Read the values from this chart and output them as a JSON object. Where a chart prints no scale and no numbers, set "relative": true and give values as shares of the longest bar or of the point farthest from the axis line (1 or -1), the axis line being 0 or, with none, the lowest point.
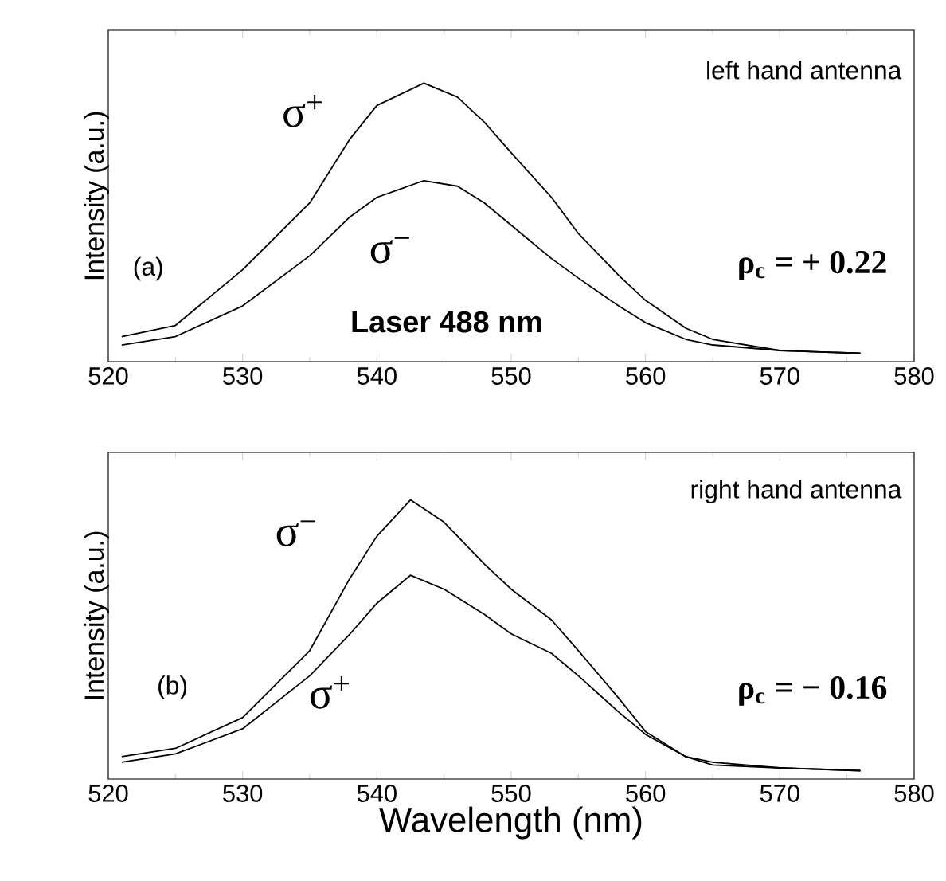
{
  "chart_data": [
    {
      "type": "line",
      "relative": true,
      "ylabel": "Intensity (a.u.)",
      "xlim": [
        520,
        580
      ],
      "xticks": [
        520,
        530,
        540,
        550,
        560,
        570,
        580
      ],
      "x": [
        521,
        525,
        530,
        535,
        538,
        540,
        543.5,
        546,
        548,
        550,
        553,
        555,
        558,
        560,
        563,
        565,
        570,
        576
      ],
      "series": [
        {
          "name": "σ$^{+}$",
          "color": "#000000",
          "values": [
            0.09,
            0.13,
            0.33,
            0.57,
            0.8,
            0.92,
            1.0,
            0.95,
            0.86,
            0.75,
            0.59,
            0.46,
            0.31,
            0.22,
            0.12,
            0.08,
            0.04,
            0.03
          ]
        },
        {
          "name": "σ$^{−}$",
          "color": "#000000",
          "values": [
            0.06,
            0.09,
            0.2,
            0.38,
            0.52,
            0.59,
            0.65,
            0.63,
            0.57,
            0.49,
            0.37,
            0.3,
            0.2,
            0.14,
            0.08,
            0.06,
            0.04,
            0.03
          ]
        }
      ],
      "annotations": [
        "left hand antenna",
        "(a)",
        "ρ$_{c}$ = + 0.22",
        "Laser 488 nm"
      ]
    },
    {
      "type": "line",
      "relative": true,
      "xlabel": "Wavelength (nm)",
      "ylabel": "Intensity (a.u.)",
      "xlim": [
        520,
        580
      ],
      "xticks": [
        520,
        530,
        540,
        550,
        560,
        570,
        580
      ],
      "x": [
        521,
        525,
        530,
        535,
        538,
        540,
        542.5,
        545,
        548,
        550,
        553,
        555,
        558,
        560,
        563,
        565,
        570,
        576
      ],
      "series": [
        {
          "name": "σ$^{−}$",
          "color": "#000000",
          "values": [
            0.08,
            0.11,
            0.22,
            0.46,
            0.72,
            0.87,
            1.0,
            0.92,
            0.77,
            0.68,
            0.57,
            0.46,
            0.29,
            0.17,
            0.08,
            0.05,
            0.04,
            0.03
          ]
        },
        {
          "name": "σ$^{+}$",
          "color": "#000000",
          "values": [
            0.06,
            0.09,
            0.18,
            0.37,
            0.52,
            0.63,
            0.73,
            0.68,
            0.59,
            0.52,
            0.45,
            0.37,
            0.24,
            0.16,
            0.08,
            0.06,
            0.04,
            0.03
          ]
        }
      ],
      "annotations": [
        "right hand antenna",
        "(b)",
        "ρ$_{c}$ = − 0.16"
      ]
    }
  ]
}
